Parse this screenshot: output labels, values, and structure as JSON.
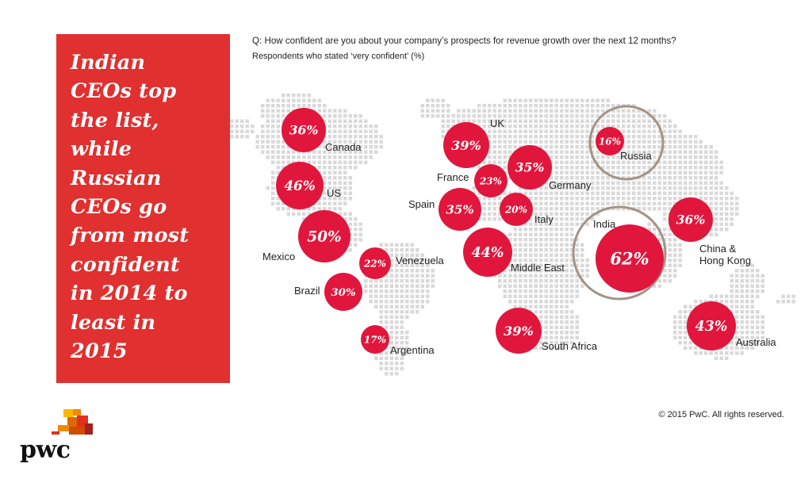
{
  "headline": "Indian\nCEOs top\nthe list,\nwhile\nRussian\nCEOs go\nfrom most\nconfident\nin 2014 to\nleast in\n2015",
  "question": "Q: How confident are you about your company’s prospects for revenue growth over the next 12 months?",
  "subtitle": "Respondents who stated ‘very confident’ (%)",
  "copyright": "© 2015 PwC. All rights reserved.",
  "logo_text": "pwc",
  "colors": {
    "brand_red": "#e0302f",
    "bubble_red": "#e1163c",
    "ring": "#a39386",
    "map_dots": "#d9d9d9"
  },
  "chart_data": {
    "type": "bubble-map",
    "unit": "%",
    "series": [
      {
        "values": [
          {
            "country": "Canada",
            "value": 36
          },
          {
            "country": "US",
            "value": 46
          },
          {
            "country": "Mexico",
            "value": 50
          },
          {
            "country": "Venezuela",
            "value": 22
          },
          {
            "country": "Brazil",
            "value": 30
          },
          {
            "country": "Argentina",
            "value": 17
          },
          {
            "country": "UK",
            "value": 39
          },
          {
            "country": "France",
            "value": 23
          },
          {
            "country": "Germany",
            "value": 35
          },
          {
            "country": "Spain",
            "value": 35
          },
          {
            "country": "Italy",
            "value": 20
          },
          {
            "country": "Middle East",
            "value": 44
          },
          {
            "country": "South Africa",
            "value": 39
          },
          {
            "country": "Russia",
            "value": 16
          },
          {
            "country": "India",
            "value": 62
          },
          {
            "country": "China & Hong Kong",
            "value": 36
          },
          {
            "country": "Australia",
            "value": 43
          }
        ]
      }
    ]
  }
}
